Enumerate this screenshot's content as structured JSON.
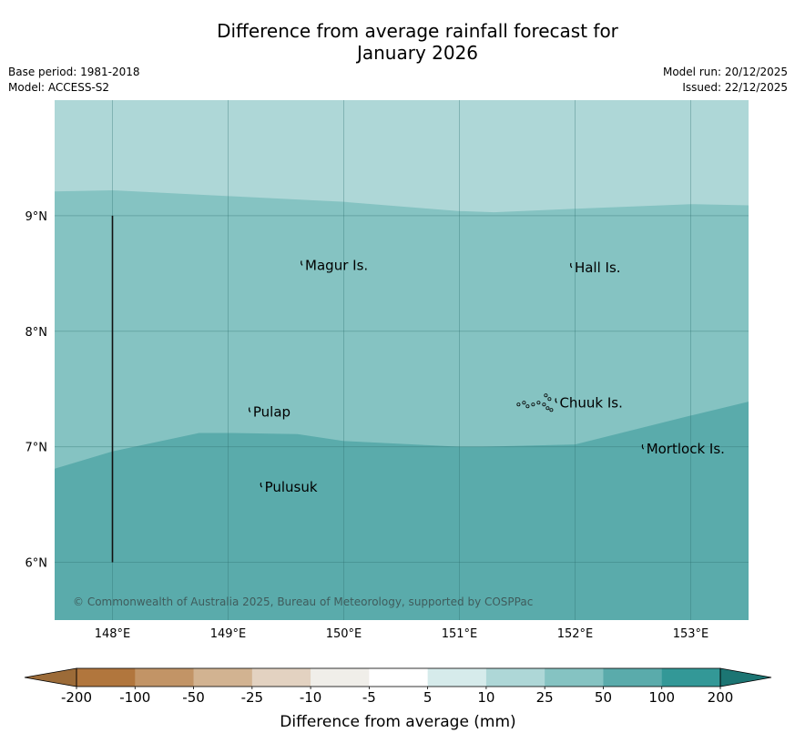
{
  "title": {
    "line1": "Difference from average rainfall forecast for",
    "line2": "January 2026"
  },
  "meta_left": {
    "base_period": "Base period: 1981-2018",
    "model": "Model: ACCESS-S2"
  },
  "meta_right": {
    "model_run": "Model run: 20/12/2025",
    "issued": "Issued: 22/12/2025"
  },
  "map": {
    "lon_range": [
      147.5,
      153.5
    ],
    "lat_range": [
      5.5,
      10.0
    ],
    "lat_ticks": [
      {
        "value": 9,
        "label": "9°N"
      },
      {
        "value": 8,
        "label": "8°N"
      },
      {
        "value": 7,
        "label": "7°N"
      },
      {
        "value": 6,
        "label": "6°N"
      }
    ],
    "lon_ticks": [
      {
        "value": 148,
        "label": "148°E"
      },
      {
        "value": 149,
        "label": "149°E"
      },
      {
        "value": 150,
        "label": "150°E"
      },
      {
        "value": 151,
        "label": "151°E"
      },
      {
        "value": 152,
        "label": "152°E"
      },
      {
        "value": 153,
        "label": "153°E"
      }
    ],
    "zones": [
      {
        "category": "10 to 25",
        "color": "#aed7d7",
        "lower_lat": 10.0
      },
      {
        "category": "25 to 50",
        "color": "#85c3c2",
        "lower_boundary": [
          [
            147.5,
            9.21
          ],
          [
            148.0,
            9.22
          ],
          [
            149.0,
            9.17
          ],
          [
            150.0,
            9.12
          ],
          [
            151.0,
            9.04
          ],
          [
            151.3,
            9.03
          ],
          [
            152.0,
            9.06
          ],
          [
            153.0,
            9.1
          ],
          [
            153.5,
            9.09
          ]
        ]
      },
      {
        "category": "50 to 100",
        "color": "#5aabab",
        "lower_boundary": [
          [
            147.5,
            6.81
          ],
          [
            148.0,
            6.96
          ],
          [
            148.75,
            7.12
          ],
          [
            149.0,
            7.12
          ],
          [
            149.6,
            7.11
          ],
          [
            150.0,
            7.05
          ],
          [
            151.0,
            7.0
          ],
          [
            151.2,
            7.0
          ],
          [
            152.0,
            7.02
          ],
          [
            153.0,
            7.27
          ],
          [
            153.5,
            7.39
          ]
        ]
      }
    ],
    "islands": [
      {
        "name": "Magur Is.",
        "lon": 149.65,
        "lat": 8.57
      },
      {
        "name": "Hall Is.",
        "lon": 151.98,
        "lat": 8.55
      },
      {
        "name": "Pulap",
        "lon": 149.2,
        "lat": 7.3
      },
      {
        "name": "Chuuk Is.",
        "lon": 151.85,
        "lat": 7.38
      },
      {
        "name": "Mortlock Is.",
        "lon": 152.6,
        "lat": 6.98
      },
      {
        "name": "Pulusuk",
        "lon": 149.3,
        "lat": 6.65
      }
    ],
    "reference_line": {
      "lon": 148.0,
      "lat_from": 9.0,
      "lat_to": 6.0
    },
    "copyright": "© Commonwealth of Australia 2025, Bureau of Meteorology, supported by COSPPac"
  },
  "colorbar": {
    "label": "Difference from average (mm)",
    "ticks": [
      "-200",
      "-100",
      "-50",
      "-25",
      "-10",
      "-5",
      "5",
      "10",
      "25",
      "50",
      "100",
      "200"
    ],
    "colors": [
      "#b1763d",
      "#c29466",
      "#d2b391",
      "#e3d2c1",
      "#f0eee9",
      "#ffffff",
      "#d6ebeb",
      "#aed7d7",
      "#85c3c2",
      "#5aabab",
      "#339897",
      "#1c7f7e"
    ],
    "under_color": "#9c6b38",
    "over_color": "#1c7573"
  }
}
